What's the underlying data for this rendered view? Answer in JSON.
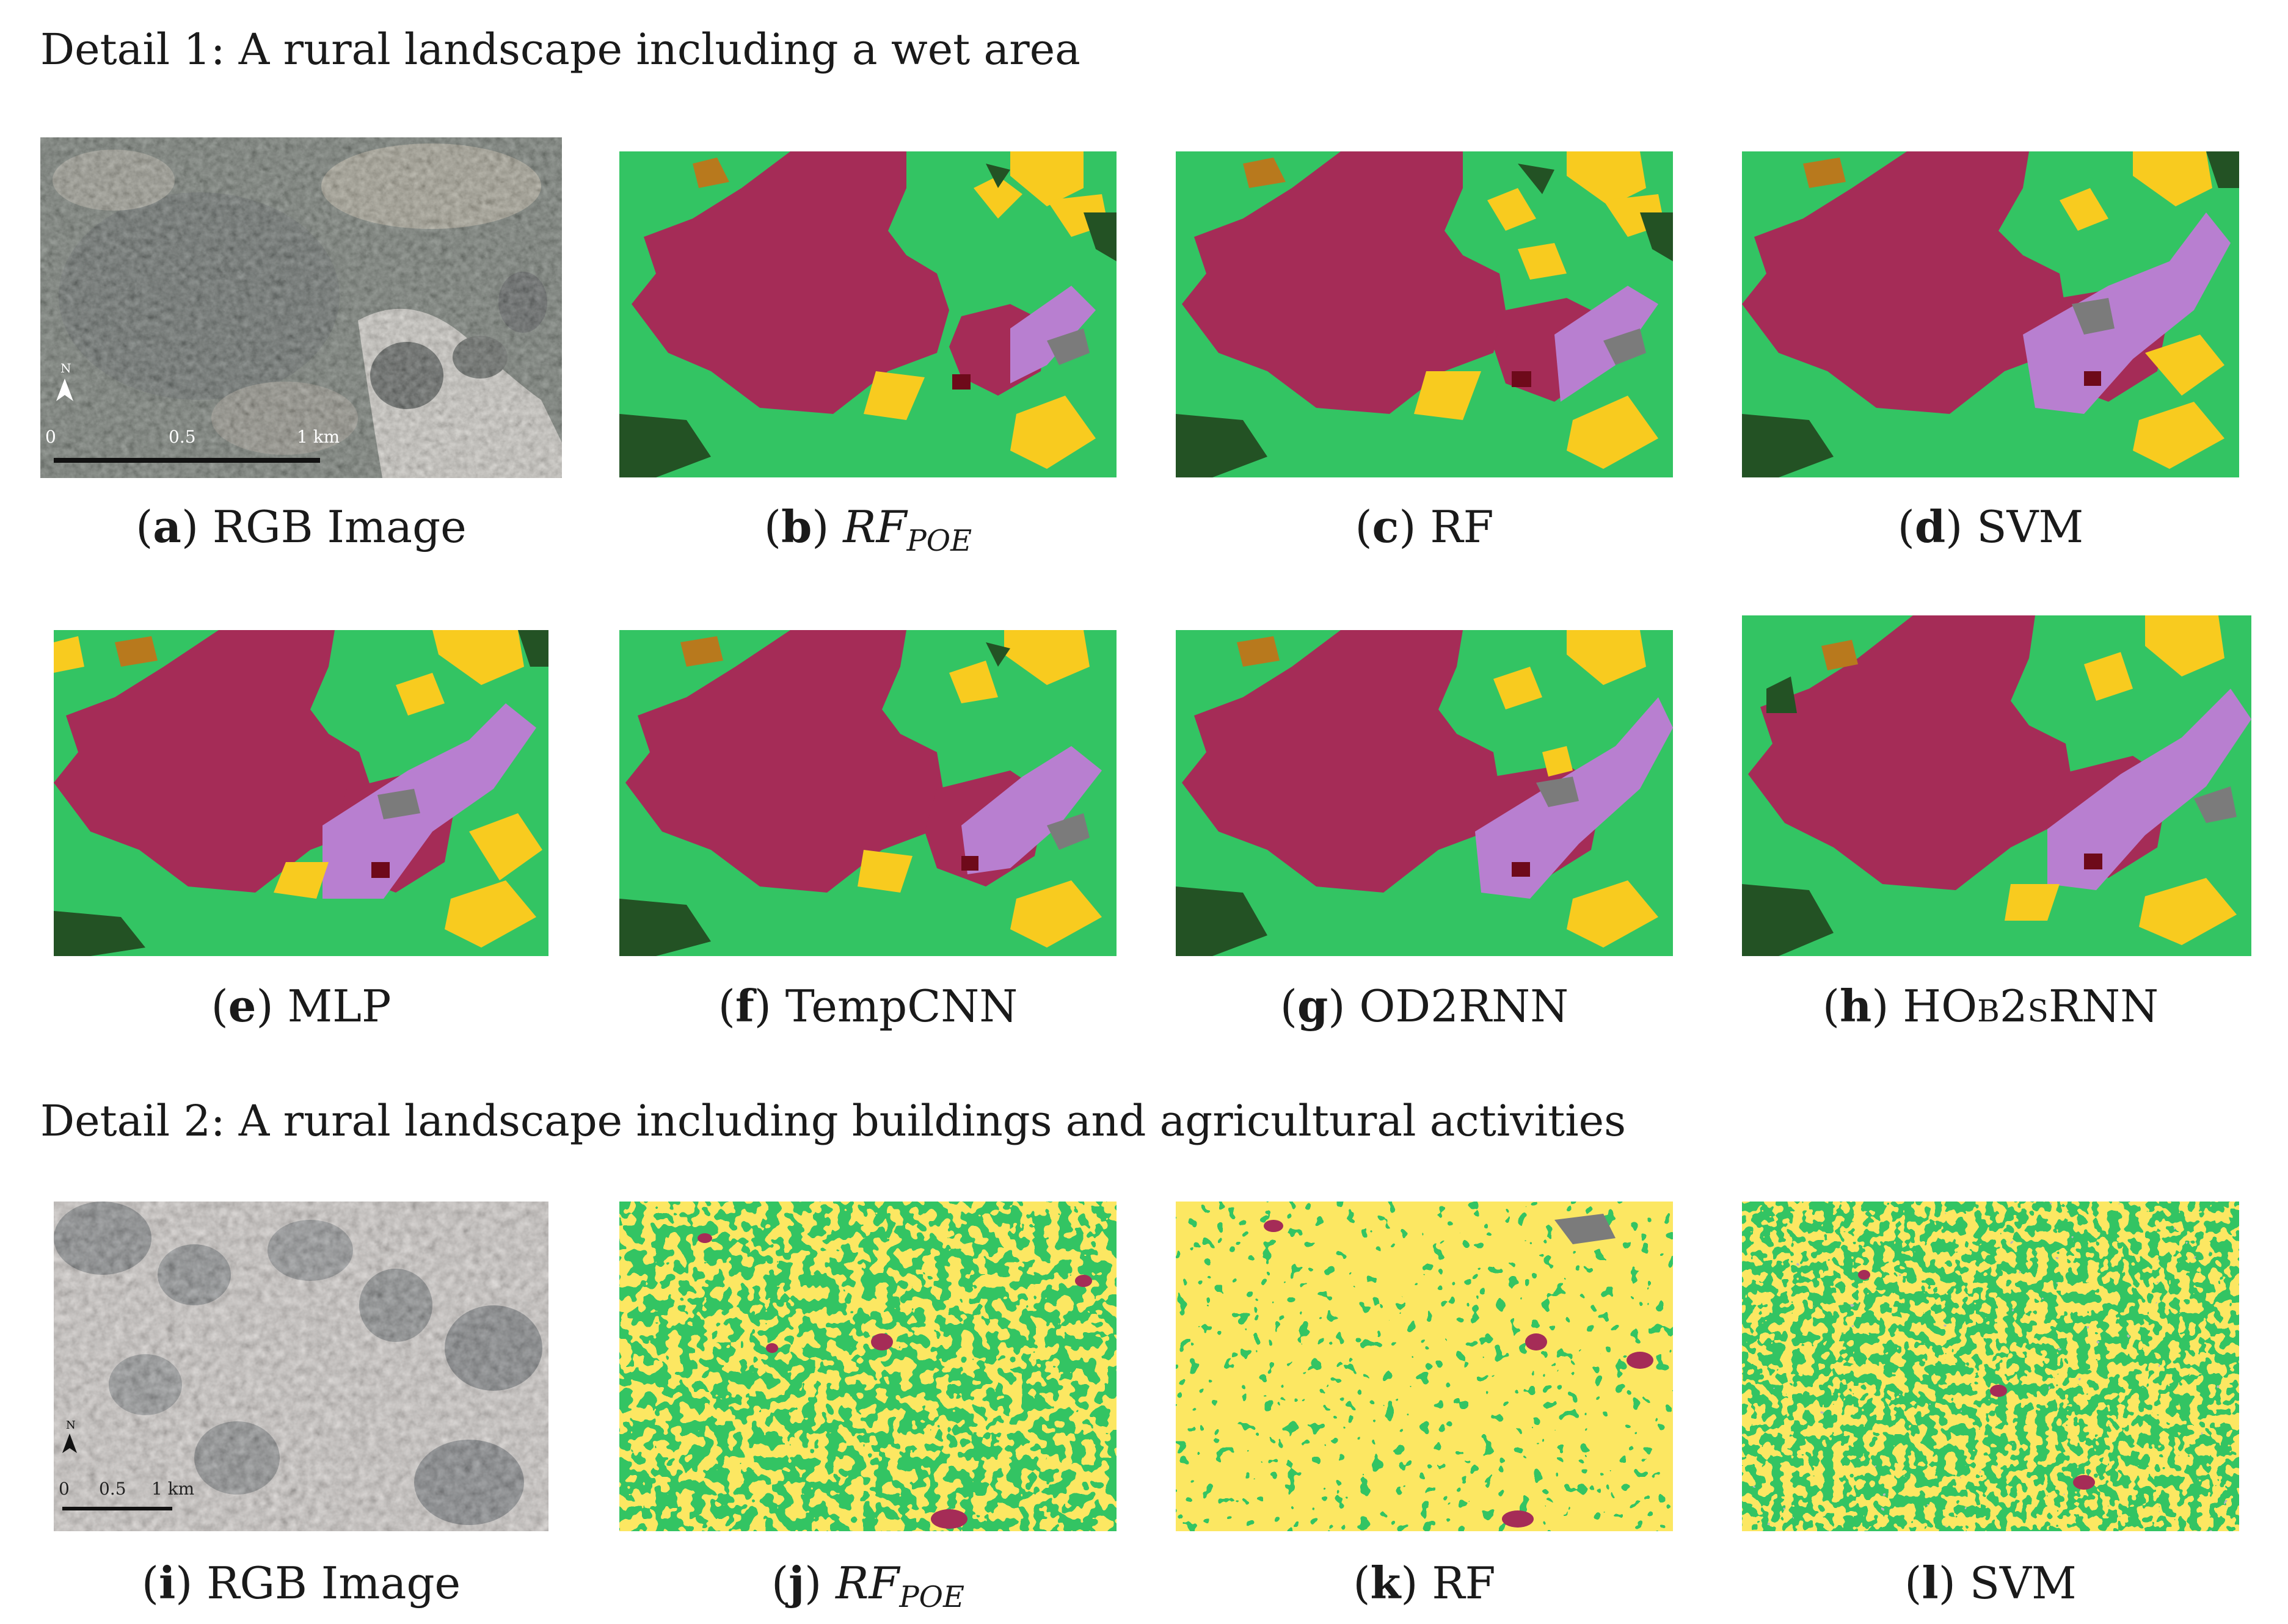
{
  "detail1": {
    "heading": "Detail 1:  A rural landscape including a wet area",
    "panels": [
      {
        "letter": "a",
        "label": "RGB Image",
        "type": "rgb"
      },
      {
        "letter": "b",
        "label": "RF",
        "sub": "POE",
        "math": true,
        "type": "map"
      },
      {
        "letter": "c",
        "label": "RF",
        "type": "map"
      },
      {
        "letter": "d",
        "label": "SVM",
        "type": "map"
      },
      {
        "letter": "e",
        "label": "MLP",
        "type": "map"
      },
      {
        "letter": "f",
        "label": "TempCNN",
        "type": "map"
      },
      {
        "letter": "g",
        "label": "OD2RNN",
        "type": "map"
      },
      {
        "letter": "h",
        "label": "HOb2sRNN",
        "type": "map"
      }
    ],
    "scale": {
      "north": "N",
      "ticks": [
        "0",
        "0.5",
        "1 km"
      ]
    }
  },
  "detail2": {
    "heading": "Detail 2:  A rural landscape including buildings and agricultural activities",
    "panels": [
      {
        "letter": "i",
        "label": "RGB Image",
        "type": "rgb"
      },
      {
        "letter": "j",
        "label": "RF",
        "sub": "POE",
        "math": true,
        "type": "map"
      },
      {
        "letter": "k",
        "label": "RF",
        "type": "map"
      },
      {
        "letter": "l",
        "label": "SVM",
        "type": "map"
      }
    ],
    "scale": {
      "north": "N",
      "ticks": [
        "0",
        "0.5",
        "1 km"
      ]
    }
  },
  "colors": {
    "savanna_green": "#33c463",
    "settlement_maroon": "#a52c57",
    "crop_yellow": "#f8cb1f",
    "wetland_lilac": "#b87fd0",
    "forest_darkgreen": "#235224",
    "bare_brown": "#b8791d",
    "rock_gray": "#7b7b7b",
    "water_darkred": "#6e0a1a"
  }
}
